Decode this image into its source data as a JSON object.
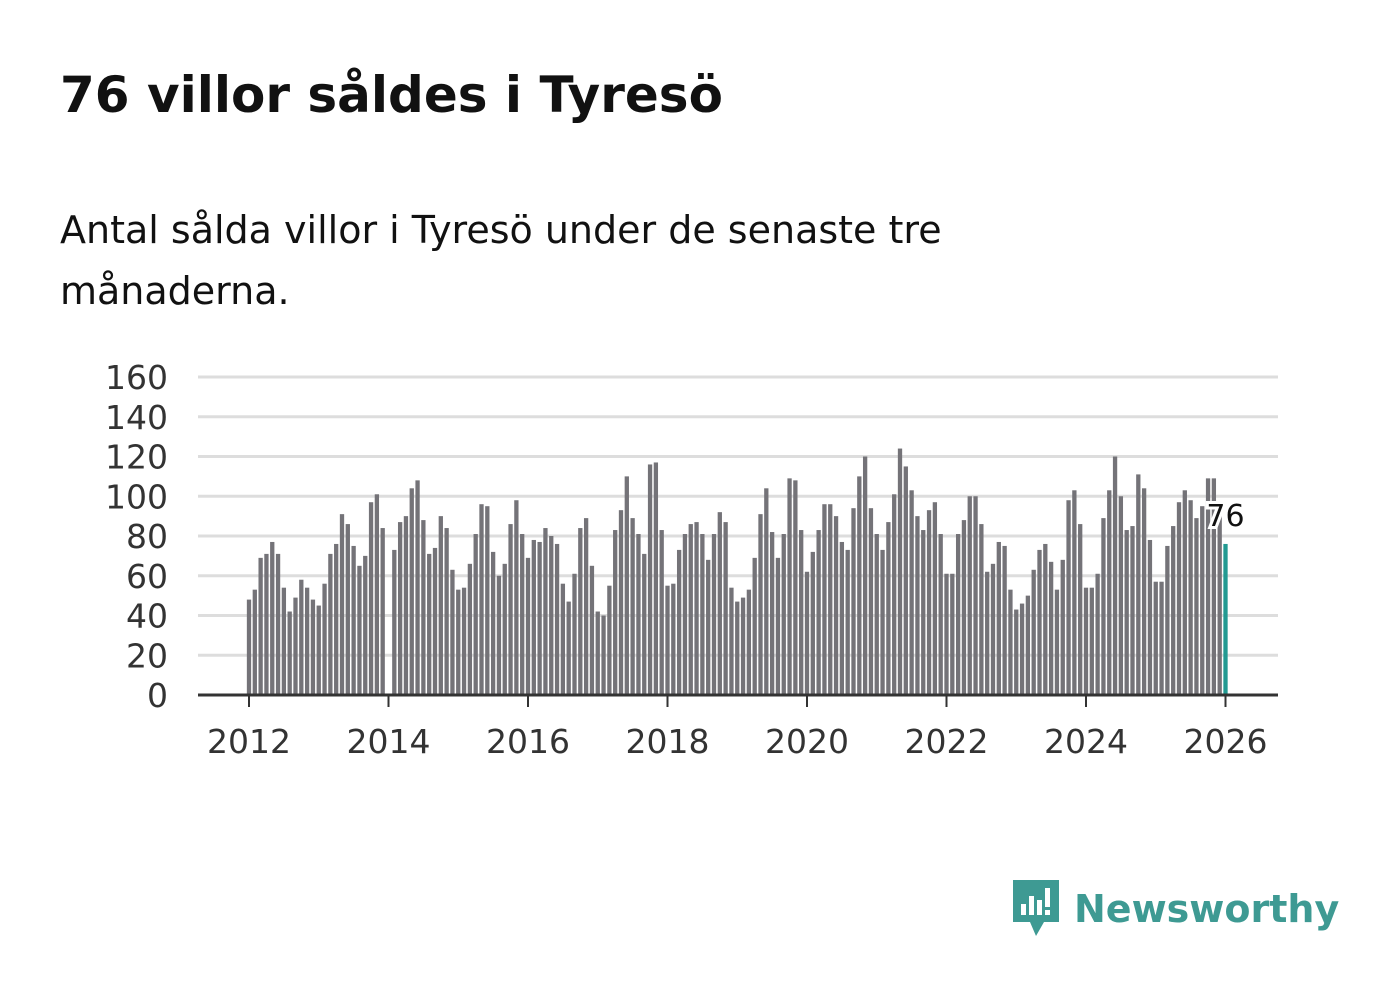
{
  "title": "76 villor såldes i Tyresö",
  "subtitle": "Antal sålda villor i Tyresö under de senaste tre månaderna.",
  "brand": {
    "name": "Newsworthy",
    "icon": "newsworthy-logo-icon",
    "color": "#3e9a93"
  },
  "colors": {
    "bar": "#747378",
    "highlight": "#229a92",
    "grid": "#dddddd",
    "axis": "#333333"
  },
  "chart_data": {
    "type": "bar",
    "title": "76 villor såldes i Tyresö",
    "xlabel": "",
    "ylabel": "",
    "ylim": [
      0,
      160
    ],
    "yticks": [
      "0",
      "20",
      "40",
      "60",
      "80",
      "100",
      "120",
      "140",
      "160"
    ],
    "xticks": [
      "2012",
      "2014",
      "2016",
      "2018",
      "2020",
      "2022",
      "2024",
      "2026"
    ],
    "start_month": "2012-01",
    "grid": true,
    "annotation": {
      "label": "76",
      "series_index_from_end": 0
    },
    "values": [
      48,
      53,
      69,
      71,
      77,
      71,
      54,
      42,
      49,
      58,
      54,
      48,
      45,
      56,
      71,
      76,
      91,
      86,
      75,
      65,
      70,
      97,
      101,
      84,
      null,
      73,
      87,
      90,
      104,
      108,
      88,
      71,
      74,
      90,
      84,
      63,
      53,
      54,
      66,
      81,
      96,
      95,
      72,
      60,
      66,
      86,
      98,
      81,
      69,
      78,
      77,
      84,
      80,
      76,
      56,
      47,
      61,
      84,
      89,
      65,
      42,
      40,
      55,
      83,
      93,
      110,
      89,
      81,
      71,
      116,
      117,
      83,
      55,
      56,
      73,
      81,
      86,
      87,
      81,
      68,
      81,
      92,
      87,
      54,
      47,
      49,
      53,
      69,
      91,
      104,
      82,
      69,
      81,
      109,
      108,
      83,
      62,
      72,
      83,
      96,
      96,
      90,
      77,
      73,
      94,
      110,
      120,
      94,
      81,
      73,
      87,
      101,
      124,
      115,
      103,
      90,
      83,
      93,
      97,
      81,
      61,
      61,
      81,
      88,
      100,
      100,
      86,
      62,
      66,
      77,
      75,
      53,
      43,
      46,
      50,
      63,
      73,
      76,
      67,
      53,
      68,
      98,
      103,
      86,
      54,
      54,
      61,
      89,
      103,
      120,
      100,
      83,
      85,
      111,
      104,
      78,
      57,
      57,
      75,
      85,
      97,
      103,
      98,
      89,
      95,
      109,
      109,
      92,
      76
    ]
  }
}
